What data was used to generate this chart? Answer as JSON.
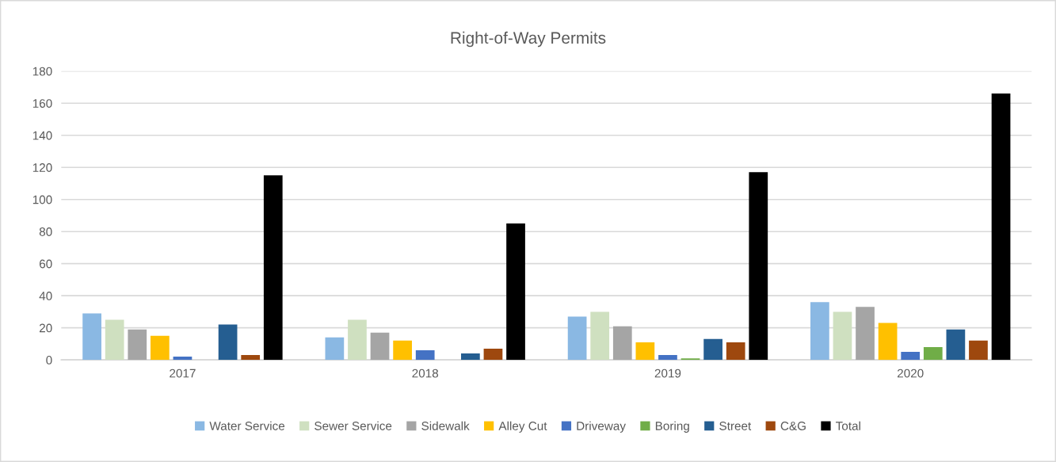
{
  "chart_data": {
    "type": "bar",
    "title": "Right-of-Way Permits",
    "categories": [
      "2017",
      "2018",
      "2019",
      "2020"
    ],
    "series": [
      {
        "name": "Water Service",
        "color": "#8ab8e3",
        "values": [
          29,
          14,
          27,
          36
        ]
      },
      {
        "name": "Sewer Service",
        "color": "#cfe0c0",
        "values": [
          25,
          25,
          30,
          30
        ]
      },
      {
        "name": "Sidewalk",
        "color": "#a5a5a5",
        "values": [
          19,
          17,
          21,
          33
        ]
      },
      {
        "name": "Alley Cut",
        "color": "#ffc000",
        "values": [
          15,
          12,
          11,
          23
        ]
      },
      {
        "name": "Driveway",
        "color": "#4472c4",
        "values": [
          2,
          6,
          3,
          5
        ]
      },
      {
        "name": "Boring",
        "color": "#70ad47",
        "values": [
          0,
          0,
          1,
          8
        ]
      },
      {
        "name": "Street",
        "color": "#255e91",
        "values": [
          22,
          4,
          13,
          19
        ]
      },
      {
        "name": "C&G",
        "color": "#9e480e",
        "values": [
          3,
          7,
          11,
          12
        ]
      },
      {
        "name": "Total",
        "color": "#000000",
        "values": [
          115,
          85,
          117,
          166
        ]
      }
    ],
    "ylim": [
      0,
      180
    ],
    "yticks": [
      0,
      20,
      40,
      60,
      80,
      100,
      120,
      140,
      160,
      180
    ],
    "grid": "y",
    "legend": "bottom"
  }
}
